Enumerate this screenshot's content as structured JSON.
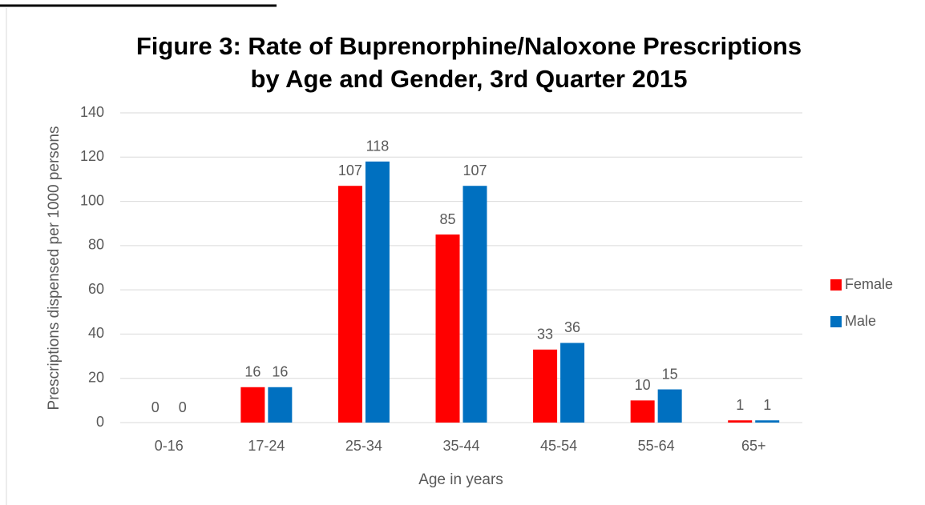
{
  "chart_data": {
    "type": "bar",
    "title": "Figure 3:  Rate of Buprenorphine/Naloxone Prescriptions",
    "subtitle": "by Age and Gender, 3rd Quarter 2015",
    "x_label": "Age in years",
    "y_label": "Prescriptions  dispensed per 1000 persons",
    "categories": [
      "0-16",
      "17-24",
      "25-34",
      "35-44",
      "45-54",
      "55-64",
      "65+"
    ],
    "series": [
      {
        "name": "Female",
        "color": "#ff0000",
        "values": [
          0,
          16,
          107,
          85,
          33,
          10,
          1
        ]
      },
      {
        "name": "Male",
        "color": "#0070c0",
        "values": [
          0,
          16,
          118,
          107,
          36,
          15,
          1
        ]
      }
    ],
    "ylim": [
      0,
      140
    ],
    "yticks": [
      0,
      20,
      40,
      60,
      80,
      100,
      120,
      140
    ],
    "grid": true,
    "legend": "right"
  }
}
